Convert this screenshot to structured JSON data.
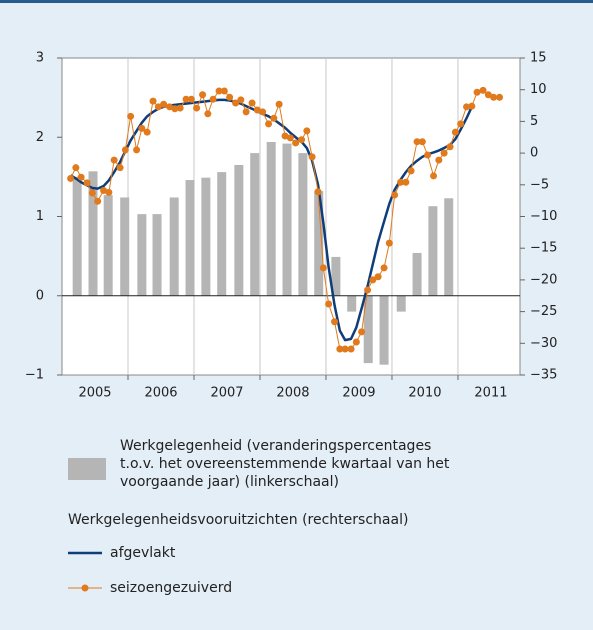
{
  "chart_data": {
    "type": "combo",
    "categories": [
      "2005",
      "2006",
      "2007",
      "2008",
      "2009",
      "2010",
      "2011"
    ],
    "xlim": [
      2005,
      2011.94
    ],
    "ylim": [
      -1,
      3
    ],
    "yticks": [
      {
        "value": -1,
        "label": "−1"
      },
      0,
      1,
      2,
      3
    ],
    "y2lim": [
      -35,
      15
    ],
    "y2ticks": [
      {
        "value": -35,
        "label": "−35"
      },
      {
        "value": -30,
        "label": "−30"
      },
      {
        "value": -25,
        "label": "−25"
      },
      {
        "value": -20,
        "label": "−20"
      },
      {
        "value": -15,
        "label": "−15"
      },
      {
        "value": -10,
        "label": "−10"
      },
      {
        "value": -5,
        "label": "−5"
      },
      0,
      5,
      10,
      15
    ],
    "legend_group_label": "Werkgelegenheidsvooruitzichten (rechterschaal)",
    "series": [
      {
        "name": "Werkgelegenheid (veranderingspercentages t.o.v. het overeenstemmende kwartaal van het voorgaande jaar) (linkerschaal)",
        "type": "bar",
        "axis": "y",
        "color": "#b5b5b5",
        "x": [
          2005.23,
          2005.47,
          2005.7,
          2005.95,
          2006.21,
          2006.44,
          2006.7,
          2006.94,
          2007.18,
          2007.42,
          2007.68,
          2007.92,
          2008.17,
          2008.41,
          2008.65,
          2008.89,
          2009.15,
          2009.39,
          2009.64,
          2009.88,
          2010.14,
          2010.38,
          2010.62,
          2010.86
        ],
        "values": [
          1.5,
          1.57,
          1.27,
          1.24,
          1.03,
          1.03,
          1.24,
          1.46,
          1.49,
          1.56,
          1.65,
          1.8,
          1.94,
          1.92,
          1.8,
          1.32,
          0.49,
          -0.2,
          -0.85,
          -0.87,
          -0.2,
          0.54,
          1.13,
          1.23
        ]
      },
      {
        "name": "afgevlakt",
        "type": "line",
        "axis": "y2",
        "color": "#0f3d7a",
        "x": [
          2005.13,
          2005.21,
          2005.29,
          2005.38,
          2005.46,
          2005.54,
          2005.63,
          2005.71,
          2005.79,
          2005.88,
          2005.96,
          2006.04,
          2006.13,
          2006.21,
          2006.29,
          2006.38,
          2006.46,
          2006.54,
          2006.63,
          2006.71,
          2006.79,
          2006.88,
          2006.96,
          2007.04,
          2007.13,
          2007.21,
          2007.29,
          2007.38,
          2007.46,
          2007.54,
          2007.63,
          2007.71,
          2007.79,
          2007.88,
          2007.96,
          2008.04,
          2008.13,
          2008.21,
          2008.29,
          2008.38,
          2008.46,
          2008.54,
          2008.63,
          2008.71,
          2008.79,
          2008.88,
          2008.96,
          2009.04,
          2009.13,
          2009.21,
          2009.29,
          2009.38,
          2009.46,
          2009.54,
          2009.63,
          2009.71,
          2009.79,
          2009.88,
          2009.96,
          2010.04,
          2010.13,
          2010.21,
          2010.29,
          2010.38,
          2010.46,
          2010.54,
          2010.63,
          2010.71,
          2010.79,
          2010.88,
          2010.96,
          2011.04,
          2011.13,
          2011.21,
          2011.29,
          2011.38,
          2011.46,
          2011.54,
          2011.63
        ],
        "values": [
          -3.5,
          -4.0,
          -4.6,
          -5.1,
          -5.5,
          -5.6,
          -5.2,
          -4.3,
          -3.0,
          -1.4,
          0.3,
          2.0,
          3.5,
          4.8,
          5.8,
          6.5,
          7.0,
          7.3,
          7.5,
          7.6,
          7.7,
          7.8,
          7.9,
          8.0,
          8.1,
          8.2,
          8.3,
          8.4,
          8.4,
          8.3,
          8.1,
          7.8,
          7.4,
          7.0,
          6.6,
          6.2,
          5.8,
          5.3,
          4.7,
          4.0,
          3.2,
          2.5,
          1.8,
          0.8,
          -1.2,
          -5.0,
          -11.0,
          -18.0,
          -24.0,
          -28.0,
          -29.5,
          -29.3,
          -27.5,
          -24.5,
          -21.0,
          -17.5,
          -14.0,
          -10.8,
          -8.0,
          -5.8,
          -4.2,
          -3.0,
          -2.0,
          -1.2,
          -0.6,
          -0.2,
          0.1,
          0.4,
          0.8,
          1.3,
          2.2,
          3.7,
          5.5,
          7.3,
          null,
          null,
          null,
          null,
          null
        ]
      },
      {
        "name": "seizoengezuiverd",
        "type": "line",
        "markers": true,
        "axis": "y2",
        "color": "#e07a1c",
        "x": [
          2005.13,
          2005.21,
          2005.29,
          2005.38,
          2005.46,
          2005.54,
          2005.63,
          2005.71,
          2005.79,
          2005.88,
          2005.96,
          2006.04,
          2006.13,
          2006.21,
          2006.29,
          2006.38,
          2006.46,
          2006.54,
          2006.63,
          2006.71,
          2006.79,
          2006.88,
          2006.96,
          2007.04,
          2007.13,
          2007.21,
          2007.29,
          2007.38,
          2007.46,
          2007.54,
          2007.63,
          2007.71,
          2007.79,
          2007.88,
          2007.96,
          2008.04,
          2008.13,
          2008.21,
          2008.29,
          2008.38,
          2008.46,
          2008.54,
          2008.63,
          2008.71,
          2008.79,
          2008.88,
          2008.96,
          2009.04,
          2009.13,
          2009.21,
          2009.29,
          2009.38,
          2009.46,
          2009.54,
          2009.63,
          2009.71,
          2009.79,
          2009.88,
          2009.96,
          2010.04,
          2010.13,
          2010.21,
          2010.29,
          2010.38,
          2010.46,
          2010.54,
          2010.63,
          2010.71,
          2010.79,
          2010.88,
          2010.96,
          2011.04,
          2011.13,
          2011.21,
          2011.29,
          2011.38,
          2011.46,
          2011.54,
          2011.63
        ],
        "values": [
          -4.0,
          -2.3,
          -3.8,
          -4.7,
          -6.3,
          -7.6,
          -5.9,
          -6.2,
          -1.1,
          -2.3,
          0.5,
          5.8,
          0.5,
          3.9,
          3.3,
          8.2,
          7.3,
          7.7,
          7.3,
          7.0,
          7.1,
          8.5,
          8.5,
          7.1,
          9.2,
          6.2,
          8.5,
          9.8,
          9.8,
          8.8,
          7.9,
          8.4,
          6.5,
          7.9,
          6.8,
          6.5,
          4.6,
          5.5,
          7.7,
          2.7,
          2.4,
          1.6,
          2.1,
          3.5,
          -0.6,
          -6.1,
          -18.1,
          -23.8,
          -26.6,
          -30.9,
          -30.9,
          -30.9,
          -29.8,
          -28.2,
          -21.6,
          -20.0,
          -19.5,
          -18.1,
          -14.2,
          -6.6,
          -4.6,
          -4.6,
          -2.8,
          1.8,
          1.8,
          -0.3,
          -3.6,
          -1.1,
          0.0,
          1.0,
          3.3,
          4.6,
          7.3,
          7.4,
          9.6,
          9.9,
          9.2,
          8.8,
          8.8
        ]
      }
    ]
  }
}
